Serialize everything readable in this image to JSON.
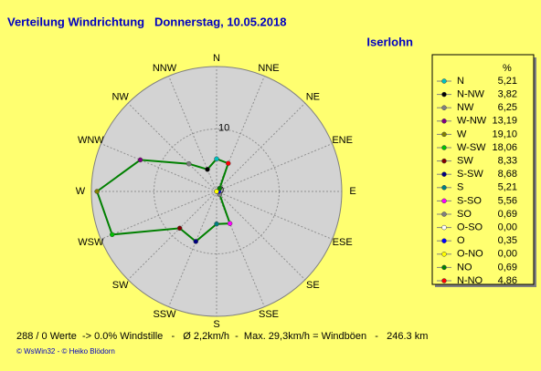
{
  "chart_data": {
    "type": "radar",
    "title": "Verteilung Windrichtung   Donnerstag, 10.05.2018",
    "subtitle": "Iserlohn",
    "legend_title": "%",
    "categories": [
      "N",
      "N-NW",
      "NW",
      "W-NW",
      "W",
      "W-SW",
      "SW",
      "S-SW",
      "S",
      "S-SO",
      "SO",
      "O-SO",
      "O",
      "O-NO",
      "NO",
      "N-NO"
    ],
    "values": [
      5.21,
      3.82,
      6.25,
      13.19,
      19.1,
      18.06,
      8.33,
      8.68,
      5.21,
      5.56,
      0.69,
      0.0,
      0.35,
      0.0,
      0.69,
      4.86
    ],
    "value_labels": [
      "5,21",
      "3,82",
      "6,25",
      "13,19",
      "19,10",
      "18,06",
      "8,33",
      "8,68",
      "5,21",
      "5,56",
      "0,69",
      "0,00",
      "0,35",
      "0,00",
      "0,69",
      "4,86"
    ],
    "colors": [
      "#00c0c0",
      "#000000",
      "#808080",
      "#800080",
      "#808000",
      "#00c000",
      "#800000",
      "#000080",
      "#008080",
      "#ff00ff",
      "#808080",
      "#ffffff",
      "#0000ff",
      "#ffff00",
      "#008000",
      "#ff0000"
    ],
    "line_color": "#008000",
    "compass_labels": [
      "N",
      "NNE",
      "NE",
      "ENE",
      "E",
      "ESE",
      "SE",
      "SSE",
      "S",
      "SSW",
      "SW",
      "WSW",
      "W",
      "WNW",
      "NW",
      "NNW"
    ],
    "rlim": [
      0,
      20
    ],
    "rticks": [
      0,
      10
    ]
  },
  "footer": "288 / 0 Werte  -> 0.0% Windstille   -   Ø 2,2km/h  -  Max. 29,3km/h = Windböen   -   246.3 km",
  "credit": "© WsWin32  -  © Heiko Blödorn"
}
